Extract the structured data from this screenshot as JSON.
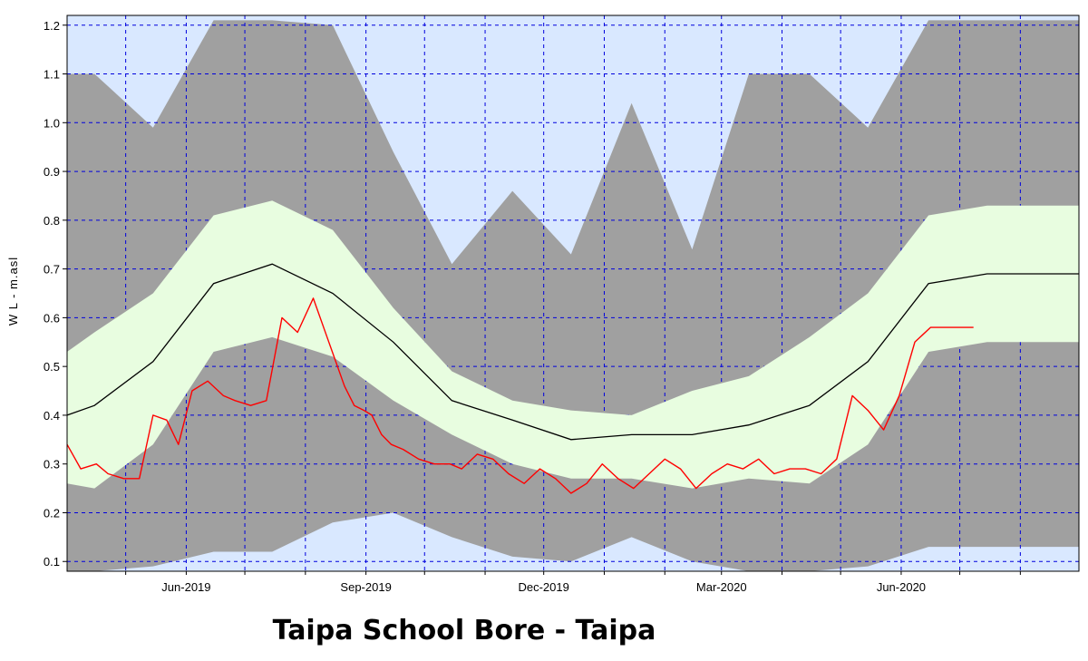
{
  "chart_data": {
    "type": "area",
    "title": "Taipa School Bore - Taipa",
    "ylabel": "W L - m.asl",
    "xlabel": "",
    "x_start": "2019-04-01",
    "x_end": "2020-08-31",
    "ylim": [
      0.08,
      1.22
    ],
    "yticks": [
      0.1,
      0.2,
      0.3,
      0.4,
      0.5,
      0.6,
      0.7,
      0.8,
      0.9,
      1.0,
      1.1,
      1.2
    ],
    "xticks": [
      {
        "date": "2019-06-01",
        "label": "Jun-2019"
      },
      {
        "date": "2019-09-01",
        "label": "Sep-2019"
      },
      {
        "date": "2019-12-01",
        "label": "Dec-2019"
      },
      {
        "date": "2020-03-01",
        "label": "Mar-2020"
      },
      {
        "date": "2020-06-01",
        "label": "Jun-2020"
      }
    ],
    "x_gridlines": [
      "2019-05-01",
      "2019-06-01",
      "2019-07-01",
      "2019-08-01",
      "2019-09-01",
      "2019-10-01",
      "2019-11-01",
      "2019-12-01",
      "2020-01-01",
      "2020-02-01",
      "2020-03-01",
      "2020-04-01",
      "2020-05-01",
      "2020-06-01",
      "2020-07-01",
      "2020-08-01"
    ],
    "grid": true,
    "colors": {
      "plot_bg": "#d9e8ff",
      "grid": "#0000dd",
      "range_band": "#a0a0a0",
      "percentile_band": "#e8fde0",
      "median": "#000000",
      "observed": "#ff0000"
    },
    "series": [
      {
        "role": "range",
        "x": [
          "2019-04-01",
          "2019-04-15",
          "2019-05-15",
          "2019-06-15",
          "2019-07-15",
          "2019-08-15",
          "2019-09-15",
          "2019-10-15",
          "2019-11-15",
          "2019-12-15",
          "2020-01-15",
          "2020-02-15",
          "2020-03-15",
          "2020-04-15",
          "2020-05-15",
          "2020-06-15",
          "2020-07-15",
          "2020-08-15",
          "2020-08-31"
        ],
        "upper": [
          1.1,
          1.1,
          0.99,
          1.21,
          1.21,
          1.2,
          0.94,
          0.71,
          0.86,
          0.73,
          1.04,
          0.74,
          1.1,
          1.1,
          0.99,
          1.21,
          1.21,
          1.21,
          1.21
        ],
        "lower": [
          0.08,
          0.08,
          0.09,
          0.12,
          0.12,
          0.18,
          0.2,
          0.15,
          0.11,
          0.1,
          0.15,
          0.1,
          0.08,
          0.08,
          0.09,
          0.13,
          0.13,
          0.13,
          0.13
        ]
      },
      {
        "role": "percentile_band",
        "x": [
          "2019-04-01",
          "2019-04-15",
          "2019-05-15",
          "2019-06-15",
          "2019-07-15",
          "2019-08-15",
          "2019-09-15",
          "2019-10-15",
          "2019-11-15",
          "2019-12-15",
          "2020-01-15",
          "2020-02-15",
          "2020-03-15",
          "2020-04-15",
          "2020-05-15",
          "2020-06-15",
          "2020-07-15",
          "2020-08-15",
          "2020-08-31"
        ],
        "upper": [
          0.53,
          0.57,
          0.65,
          0.81,
          0.84,
          0.78,
          0.62,
          0.49,
          0.43,
          0.41,
          0.4,
          0.45,
          0.48,
          0.56,
          0.65,
          0.81,
          0.83,
          0.83,
          0.83
        ],
        "lower": [
          0.26,
          0.25,
          0.34,
          0.53,
          0.56,
          0.52,
          0.43,
          0.36,
          0.3,
          0.27,
          0.27,
          0.25,
          0.27,
          0.26,
          0.34,
          0.53,
          0.55,
          0.55,
          0.55
        ]
      },
      {
        "role": "median",
        "x": [
          "2019-04-01",
          "2019-04-15",
          "2019-05-15",
          "2019-06-15",
          "2019-07-15",
          "2019-08-15",
          "2019-09-15",
          "2019-10-15",
          "2019-11-15",
          "2019-12-15",
          "2020-01-15",
          "2020-02-15",
          "2020-03-15",
          "2020-04-15",
          "2020-05-15",
          "2020-06-15",
          "2020-07-15",
          "2020-08-15",
          "2020-08-31"
        ],
        "values": [
          0.4,
          0.42,
          0.51,
          0.67,
          0.71,
          0.65,
          0.55,
          0.43,
          0.39,
          0.35,
          0.36,
          0.36,
          0.38,
          0.42,
          0.51,
          0.67,
          0.69,
          0.69,
          0.69
        ]
      },
      {
        "role": "observed",
        "x": [
          "2019-04-01",
          "2019-04-08",
          "2019-04-16",
          "2019-04-22",
          "2019-04-30",
          "2019-05-08",
          "2019-05-15",
          "2019-05-22",
          "2019-05-28",
          "2019-06-04",
          "2019-06-12",
          "2019-06-20",
          "2019-06-26",
          "2019-07-04",
          "2019-07-12",
          "2019-07-20",
          "2019-07-28",
          "2019-08-05",
          "2019-08-13",
          "2019-08-21",
          "2019-08-26",
          "2019-08-31",
          "2019-09-04",
          "2019-09-09",
          "2019-09-14",
          "2019-09-20",
          "2019-09-28",
          "2019-10-06",
          "2019-10-14",
          "2019-10-20",
          "2019-10-28",
          "2019-11-05",
          "2019-11-13",
          "2019-11-21",
          "2019-11-29",
          "2019-12-07",
          "2019-12-15",
          "2019-12-23",
          "2019-12-31",
          "2020-01-08",
          "2020-01-16",
          "2020-01-24",
          "2020-02-01",
          "2020-02-09",
          "2020-02-17",
          "2020-02-25",
          "2020-03-04",
          "2020-03-12",
          "2020-03-20",
          "2020-03-28",
          "2020-04-05",
          "2020-04-13",
          "2020-04-21",
          "2020-04-29",
          "2020-05-07",
          "2020-05-15",
          "2020-05-23",
          "2020-05-31",
          "2020-06-08",
          "2020-06-16",
          "2020-06-24",
          "2020-07-02",
          "2020-07-08"
        ],
        "values": [
          0.34,
          0.29,
          0.3,
          0.28,
          0.27,
          0.27,
          0.4,
          0.39,
          0.34,
          0.45,
          0.47,
          0.44,
          0.43,
          0.42,
          0.43,
          0.6,
          0.57,
          0.64,
          0.55,
          0.46,
          0.42,
          0.41,
          0.4,
          0.36,
          0.34,
          0.33,
          0.31,
          0.3,
          0.3,
          0.29,
          0.32,
          0.31,
          0.28,
          0.26,
          0.29,
          0.27,
          0.24,
          0.26,
          0.3,
          0.27,
          0.25,
          0.28,
          0.31,
          0.29,
          0.25,
          0.28,
          0.3,
          0.29,
          0.31,
          0.28,
          0.29,
          0.29,
          0.28,
          0.31,
          0.44,
          0.41,
          0.37,
          0.44,
          0.55,
          0.58,
          0.58,
          0.58,
          0.58
        ]
      }
    ]
  }
}
